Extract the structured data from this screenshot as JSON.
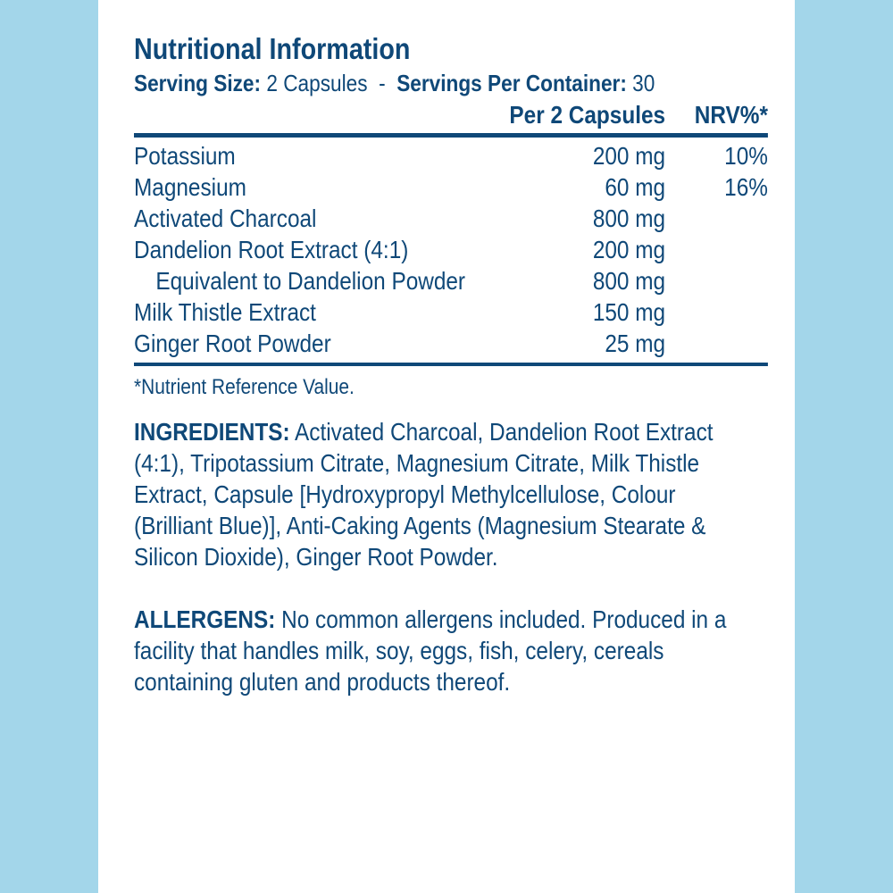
{
  "title": "Nutritional Information",
  "serving": {
    "size_label": "Serving Size:",
    "size_value": " 2 Capsules",
    "sep": "  -  ",
    "per_container_label": "Servings Per Container:",
    "per_container_value": " 30"
  },
  "table": {
    "headers": {
      "amount": "Per 2 Capsules",
      "nrv": "NRV%*"
    },
    "rows": [
      {
        "name": "Potassium",
        "amount": "200 mg",
        "nrv": "10%"
      },
      {
        "name": "Magnesium",
        "amount": "60 mg",
        "nrv": "16%"
      },
      {
        "name": "Activated Charcoal",
        "amount": "800 mg",
        "nrv": ""
      },
      {
        "name": "Dandelion Root Extract (4:1)",
        "amount": "200 mg",
        "nrv": ""
      },
      {
        "name": "Equivalent to Dandelion Powder",
        "amount": "800 mg",
        "nrv": "",
        "indent": true
      },
      {
        "name": "Milk Thistle Extract",
        "amount": "150 mg",
        "nrv": ""
      },
      {
        "name": "Ginger Root Powder",
        "amount": "25 mg",
        "nrv": ""
      }
    ],
    "footnote": "*Nutrient Reference Value."
  },
  "ingredients": {
    "label": "INGREDIENTS:",
    "lines": [
      " Activated Charcoal, Dandelion Root Extract",
      "(4:1), Tripotassium Citrate, Magnesium Citrate, Milk Thistle",
      "Extract, Capsule [Hydroxypropyl Methylcellulose, Colour",
      "(Brilliant Blue)], Anti-Caking Agents (Magnesium Stearate &",
      "Silicon Dioxide), Ginger Root Powder."
    ]
  },
  "allergens": {
    "label": "ALLERGENS:",
    "lines": [
      " No common allergens included. Produced in a",
      "facility that handles milk, soy, eggs, fish, celery, cereals",
      "containing gluten and products thereof."
    ]
  },
  "colors": {
    "text": "#0f4878",
    "side_panels": "#a3d6ea",
    "background": "#ffffff"
  }
}
